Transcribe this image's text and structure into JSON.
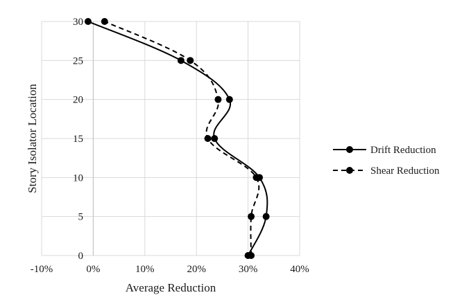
{
  "chart_data": {
    "type": "line",
    "xlabel": "Average Reduction",
    "ylabel": "Story Isolator Location",
    "xlim": [
      -0.1,
      0.4
    ],
    "ylim": [
      0,
      30
    ],
    "x_ticks": [
      -0.1,
      0.0,
      0.1,
      0.2,
      0.3,
      0.4
    ],
    "x_tick_labels": [
      "-10%",
      "0%",
      "10%",
      "20%",
      "30%",
      "40%"
    ],
    "y_ticks": [
      0,
      5,
      10,
      15,
      20,
      25,
      30
    ],
    "y_tick_labels": [
      "0",
      "5",
      "10",
      "15",
      "20",
      "25",
      "30"
    ],
    "grid": true,
    "legend_position": "right",
    "series": [
      {
        "name": "Drift Reduction",
        "line_style": "solid",
        "color": "#000000",
        "points": [
          {
            "x": 0.3,
            "y": 0
          },
          {
            "x": 0.335,
            "y": 5
          },
          {
            "x": 0.322,
            "y": 10
          },
          {
            "x": 0.235,
            "y": 15
          },
          {
            "x": 0.264,
            "y": 20
          },
          {
            "x": 0.17,
            "y": 25
          },
          {
            "x": -0.01,
            "y": 30
          }
        ]
      },
      {
        "name": "Shear Reduction",
        "line_style": "dashed",
        "color": "#000000",
        "points": [
          {
            "x": 0.306,
            "y": 0
          },
          {
            "x": 0.306,
            "y": 5
          },
          {
            "x": 0.316,
            "y": 10
          },
          {
            "x": 0.222,
            "y": 15
          },
          {
            "x": 0.242,
            "y": 20
          },
          {
            "x": 0.188,
            "y": 25
          },
          {
            "x": 0.022,
            "y": 30
          }
        ]
      }
    ]
  }
}
